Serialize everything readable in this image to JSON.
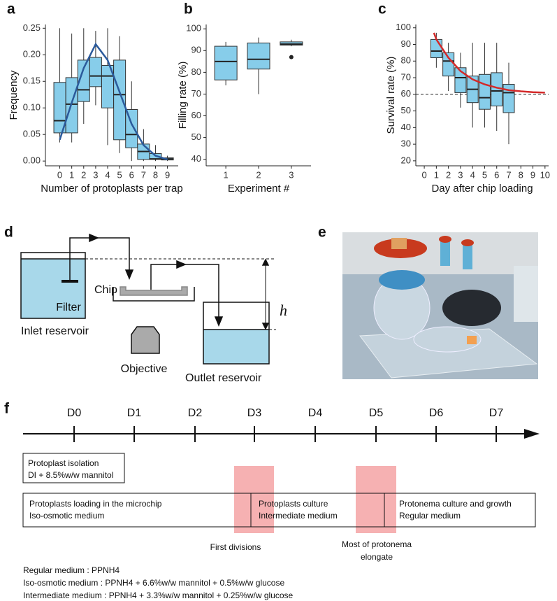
{
  "chart_data": [
    {
      "type": "box",
      "panel": "a",
      "xlabel": "Number of protoplasts per trap",
      "ylabel": "Frequency",
      "color": "#87cdea",
      "x": [
        0,
        1,
        2,
        3,
        4,
        5,
        6,
        7,
        8,
        9
      ],
      "xlim": [
        -1.2,
        9.9
      ],
      "xticks": [
        0,
        1,
        2,
        3,
        4,
        5,
        6,
        7,
        8,
        9
      ],
      "ylim": [
        -0.009,
        0.257
      ],
      "yticks": [
        {
          "value": 0,
          "label": "0.00"
        },
        {
          "value": 0.05,
          "label": "0.05"
        },
        {
          "value": 0.1,
          "label": "0.10"
        },
        {
          "value": 0.15,
          "label": "0.15"
        },
        {
          "value": 0.2,
          "label": "0.20"
        },
        {
          "value": 0.25,
          "label": "0.25"
        }
      ],
      "boxes": [
        {
          "whislo": 0.035,
          "q1": 0.053,
          "med": 0.076,
          "q3": 0.148,
          "whishi": 0.25
        },
        {
          "whislo": 0.035,
          "q1": 0.053,
          "med": 0.107,
          "q3": 0.157,
          "whishi": 0.24
        },
        {
          "whislo": 0.07,
          "q1": 0.112,
          "med": 0.134,
          "q3": 0.19,
          "whishi": 0.25
        },
        {
          "whislo": 0.105,
          "q1": 0.14,
          "med": 0.16,
          "q3": 0.195,
          "whishi": 0.245
        },
        {
          "whislo": 0.03,
          "q1": 0.1,
          "med": 0.16,
          "q3": 0.18,
          "whishi": 0.25
        },
        {
          "whislo": 0.015,
          "q1": 0.04,
          "med": 0.125,
          "q3": 0.19,
          "whishi": 0.235
        },
        {
          "whislo": 0,
          "q1": 0.025,
          "med": 0.05,
          "q3": 0.097,
          "whishi": 0.15
        },
        {
          "whislo": 0,
          "q1": 0.003,
          "med": 0.018,
          "q3": 0.032,
          "whishi": 0.06
        },
        {
          "whislo": 0,
          "q1": 0.003,
          "med": 0.004,
          "q3": 0.014,
          "whishi": 0.03
        },
        {
          "whislo": 0,
          "q1": 0.002,
          "med": 0.004,
          "q3": 0.006,
          "whishi": 0.01
        }
      ],
      "fit": {
        "color": "#2b5a9b",
        "x": [
          0,
          1,
          2,
          3,
          4,
          5,
          6,
          7,
          8,
          9
        ],
        "values": [
          0.04,
          0.11,
          0.175,
          0.22,
          0.19,
          0.13,
          0.07,
          0.03,
          0.01,
          0.003
        ]
      }
    },
    {
      "type": "box",
      "panel": "b",
      "xlabel": "Experiment #",
      "ylabel": "Filling rate (%)",
      "color": "#87cdea",
      "x": [
        1,
        2,
        3
      ],
      "xlim": [
        0.4,
        3.6
      ],
      "xticks": [
        1,
        2,
        3
      ],
      "ylim": [
        37,
        102
      ],
      "yticks": [
        40,
        50,
        60,
        70,
        80,
        90,
        100
      ],
      "boxes": [
        {
          "whislo": 74,
          "q1": 76.5,
          "med": 85,
          "q3": 92,
          "whishi": 94
        },
        {
          "whislo": 70,
          "q1": 81.5,
          "med": 86,
          "q3": 93.5,
          "whishi": 96
        },
        {
          "whislo": 92,
          "q1": 92.5,
          "med": 93,
          "q3": 94,
          "whishi": 95,
          "fliers": [
            87
          ]
        }
      ]
    },
    {
      "type": "box",
      "panel": "c",
      "xlabel": "Day after chip loading",
      "ylabel": "Survival rate (%)",
      "color": "#87cdea",
      "x": [
        1,
        2,
        3,
        4,
        5,
        6,
        7
      ],
      "xlim": [
        -0.7,
        10.3
      ],
      "xticks": [
        0,
        1,
        2,
        3,
        4,
        5,
        6,
        7,
        8,
        9,
        10
      ],
      "ylim": [
        17,
        102
      ],
      "yticks": [
        20,
        30,
        40,
        50,
        60,
        70,
        80,
        90,
        100
      ],
      "boxes": [
        {
          "whislo": 76,
          "q1": 82,
          "med": 86,
          "q3": 93,
          "whishi": 97
        },
        {
          "whislo": 62,
          "q1": 71,
          "med": 80,
          "q3": 85,
          "whishi": 91
        },
        {
          "whislo": 52,
          "q1": 61,
          "med": 70,
          "q3": 76,
          "whishi": 85
        },
        {
          "whislo": 40,
          "q1": 55,
          "med": 63,
          "q3": 71,
          "whishi": 91
        },
        {
          "whislo": 40,
          "q1": 51,
          "med": 58,
          "q3": 72,
          "whishi": 91
        },
        {
          "whislo": 38,
          "q1": 53,
          "med": 62,
          "q3": 73,
          "whishi": 91
        },
        {
          "whislo": 30,
          "q1": 49,
          "med": 61,
          "q3": 66,
          "whishi": 79
        }
      ],
      "fit": {
        "color": "#d42a2a",
        "x": [
          0.8,
          1,
          2,
          3,
          4,
          5,
          6,
          7,
          8,
          9,
          10
        ],
        "values": [
          97,
          93,
          82,
          74,
          69,
          66,
          64,
          62.5,
          61.8,
          61.3,
          61
        ]
      },
      "hline": 60
    }
  ],
  "diagram": {
    "panel": "d",
    "filter": "Filter",
    "chip": "Chip",
    "inlet": "Inlet reservoir",
    "objective": "Objective",
    "outlet": "Outlet reservoir",
    "height": "h"
  },
  "photo": {
    "panel": "e"
  },
  "timeline": {
    "panel": "f",
    "days": [
      "D0",
      "D1",
      "D2",
      "D3",
      "D4",
      "D5",
      "D6",
      "D7"
    ],
    "isolation": [
      "Protoplast isolation",
      "DI + 8.5%w/w mannitol"
    ],
    "stages": [
      [
        "Protoplasts loading in the microchip",
        "Iso-osmotic medium"
      ],
      [
        "Protoplasts culture",
        "Intermediate medium"
      ],
      [
        "Protonema culture and growth",
        "Regular medium"
      ]
    ],
    "events": [
      [
        "First divisions"
      ],
      [
        "Most of protonema",
        "elongate"
      ]
    ]
  },
  "notes": [
    "Regular medium : PPNH4",
    "Iso-osmotic medium : PPNH4 + 6.6%w/w mannitol + 0.5%w/w glucose",
    "Intermediate medium : PPNH4 + 3.3%w/w mannitol + 0.25%w/w glucose"
  ]
}
